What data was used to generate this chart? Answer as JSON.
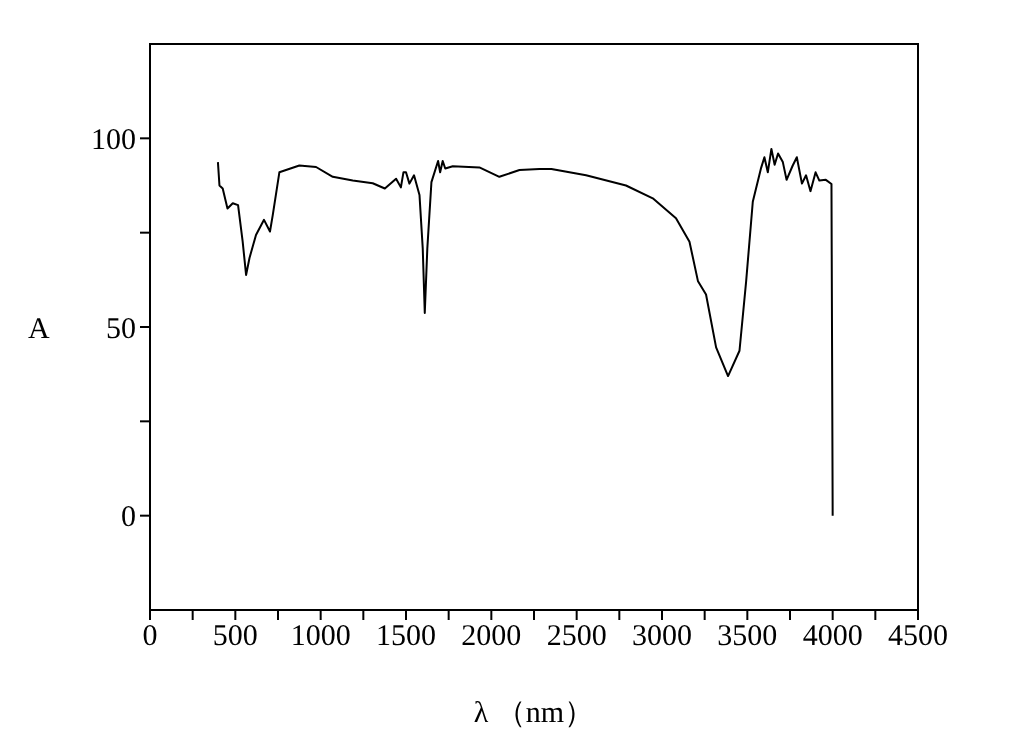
{
  "chart_data": {
    "type": "line",
    "xlabel": "λ （nm）",
    "ylabel": "A",
    "xlim": [
      0,
      4500
    ],
    "ylim": [
      -25,
      125
    ],
    "xticks": [
      0,
      {
        "value": 250,
        "label": null
      },
      500,
      {
        "value": 750,
        "label": null
      },
      1000,
      {
        "value": 1250,
        "label": null
      },
      1500,
      {
        "value": 1750,
        "label": null
      },
      2000,
      {
        "value": 2250,
        "label": null
      },
      2500,
      {
        "value": 2750,
        "label": null
      },
      3000,
      {
        "value": 3250,
        "label": null
      },
      3500,
      {
        "value": 3750,
        "label": null
      },
      4000,
      {
        "value": 4250,
        "label": null
      },
      4500
    ],
    "yticks": [
      0,
      {
        "value": 25,
        "label": null
      },
      50,
      {
        "value": 75,
        "label": null
      },
      100
    ],
    "grid": false,
    "legend": false,
    "marker": "none",
    "line_style": "solid",
    "series": [
      {
        "color": "#000000",
        "x": [
          398,
          407,
          426,
          454,
          485,
          516,
          543,
          563,
          583,
          621,
          668,
          703,
          719,
          758,
          875,
          973,
          1071,
          1188,
          1305,
          1376,
          1442,
          1470,
          1485,
          1500,
          1520,
          1547,
          1579,
          1598,
          1610,
          1625,
          1649,
          1688,
          1700,
          1715,
          1730,
          1774,
          1930,
          2047,
          2165,
          2282,
          2352,
          2555,
          2789,
          2946,
          3082,
          3161,
          3211,
          3258,
          3317,
          3387,
          3454,
          3493,
          3532,
          3579,
          3600,
          3620,
          3641,
          3660,
          3680,
          3708,
          3730,
          3766,
          3790,
          3820,
          3844,
          3870,
          3900,
          3922,
          3960,
          3993,
          4000
        ],
        "values": [
          93.7,
          87.5,
          86.7,
          81.4,
          82.8,
          82.3,
          72.6,
          63.8,
          68.3,
          74.4,
          78.4,
          75.3,
          79.6,
          91,
          92.8,
          92.4,
          89.8,
          88.8,
          88.1,
          86.7,
          89.3,
          87,
          91,
          91,
          88,
          90.2,
          85,
          70.9,
          53.7,
          70.9,
          88.4,
          94,
          91,
          94,
          92,
          92.6,
          92.3,
          89.8,
          91.6,
          91.9,
          91.9,
          90.2,
          87.5,
          84.1,
          78.8,
          72.6,
          62.1,
          58.6,
          44.6,
          37,
          43.7,
          62.1,
          83.2,
          91.9,
          95,
          91,
          97.2,
          93,
          96,
          93.7,
          89,
          92.8,
          95,
          88,
          90.2,
          86,
          91,
          88.8,
          89,
          87.9,
          0
        ]
      }
    ]
  }
}
